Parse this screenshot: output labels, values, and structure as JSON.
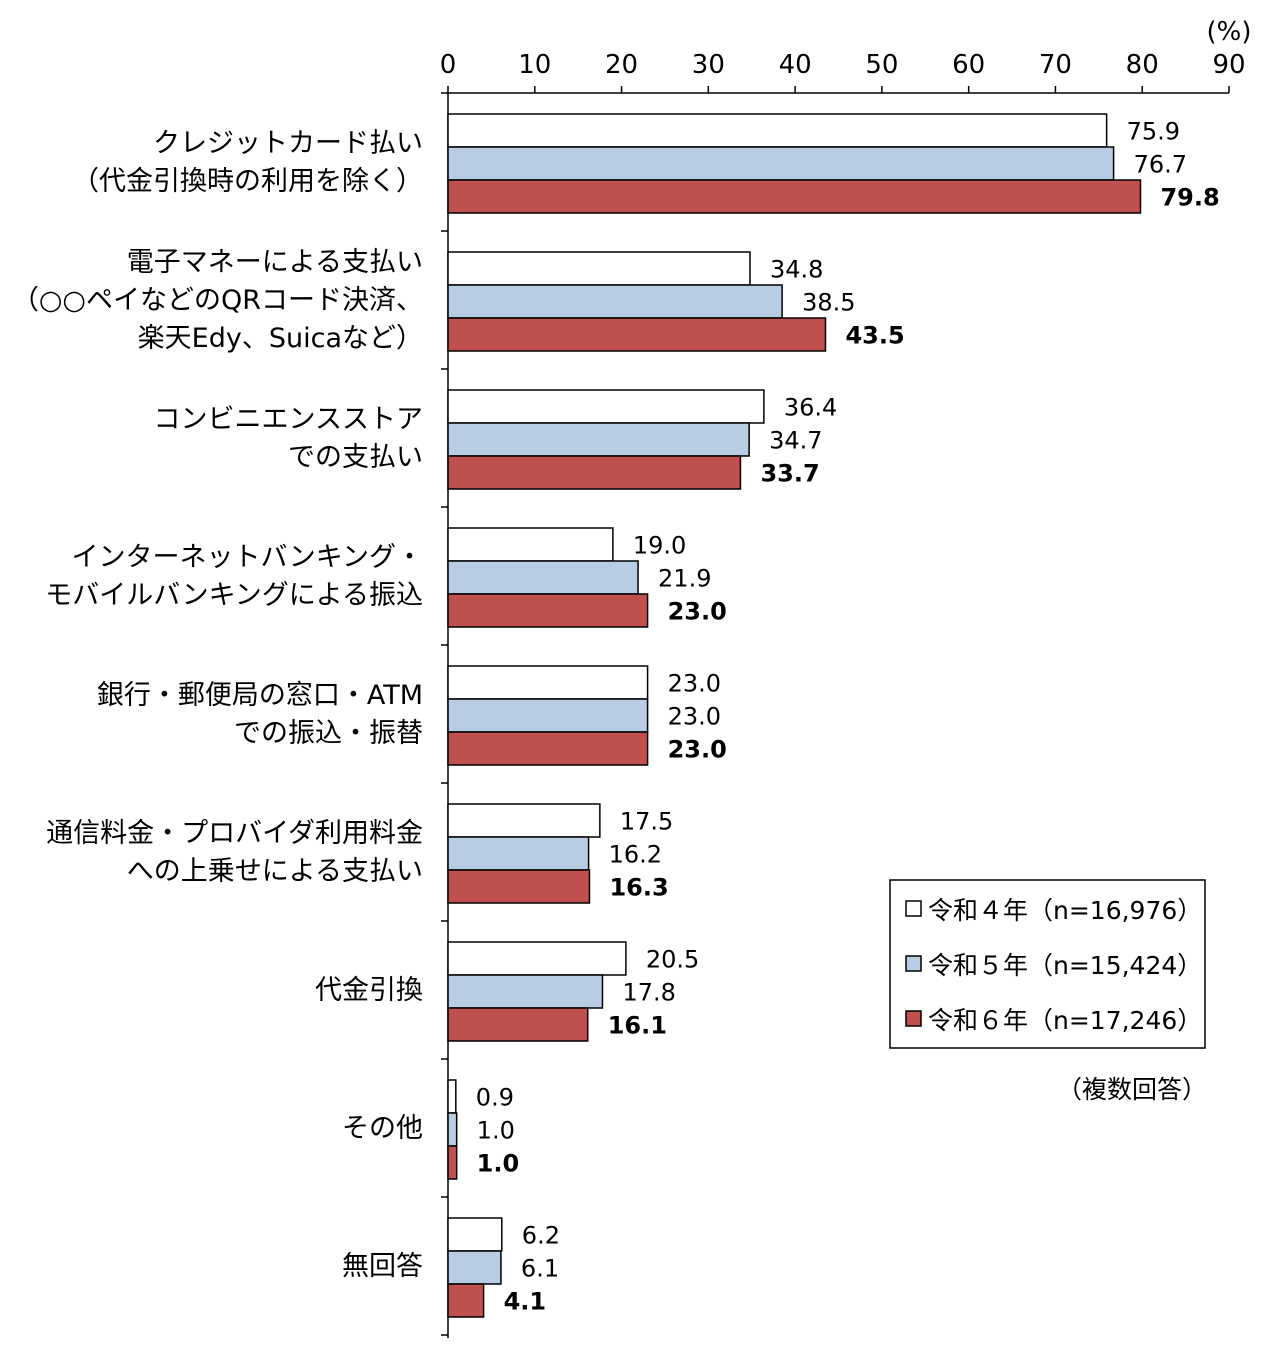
{
  "chart_data": {
    "type": "bar",
    "orientation": "horizontal",
    "unit_label": "(%)",
    "note": "（複数回答）",
    "xlim": [
      0,
      90
    ],
    "xticks": [
      "0",
      "10",
      "20",
      "30",
      "40",
      "50",
      "60",
      "70",
      "80",
      "90"
    ],
    "grid": false,
    "legend_position": "right",
    "categories": [
      [
        "クレジットカード払い",
        "（代金引換時の利用を除く）"
      ],
      [
        "電子マネーによる支払い",
        "（○○ペイなどのQRコード決済、",
        "楽天Edy、Suicaなど）"
      ],
      [
        "コンビニエンスストア",
        "での支払い"
      ],
      [
        "インターネットバンキング・",
        "モバイルバンキングによる振込"
      ],
      [
        "銀行・郵便局の窓口・ATM",
        "での振込・振替"
      ],
      [
        "通信料金・プロバイダ利用料金",
        "への上乗せによる支払い"
      ],
      [
        "代金引換"
      ],
      [
        "その他"
      ],
      [
        "無回答"
      ]
    ],
    "series": [
      {
        "name": "令和４年（n=16,976）",
        "color": "#ffffff",
        "values": [
          75.9,
          34.8,
          36.4,
          19.0,
          23.0,
          17.5,
          20.5,
          0.9,
          6.2
        ],
        "labels": [
          "75.9",
          "34.8",
          "36.4",
          "19.0",
          "23.0",
          "17.5",
          "20.5",
          "0.9",
          "6.2"
        ]
      },
      {
        "name": "令和５年（n=15,424）",
        "color": "#b8cce4",
        "values": [
          76.7,
          38.5,
          34.7,
          21.9,
          23.0,
          16.2,
          17.8,
          1.0,
          6.1
        ],
        "labels": [
          "76.7",
          "38.5",
          "34.7",
          "21.9",
          "23.0",
          "16.2",
          "17.8",
          "1.0",
          "6.1"
        ]
      },
      {
        "name": "令和６年（n=17,246）",
        "color": "#c0504d",
        "values": [
          79.8,
          43.5,
          33.7,
          23.0,
          23.0,
          16.3,
          16.1,
          1.0,
          4.1
        ],
        "labels": [
          "79.8",
          "43.5",
          "33.7",
          "23.0",
          "23.0",
          "16.3",
          "16.1",
          "1.0",
          "4.1"
        ]
      }
    ]
  }
}
